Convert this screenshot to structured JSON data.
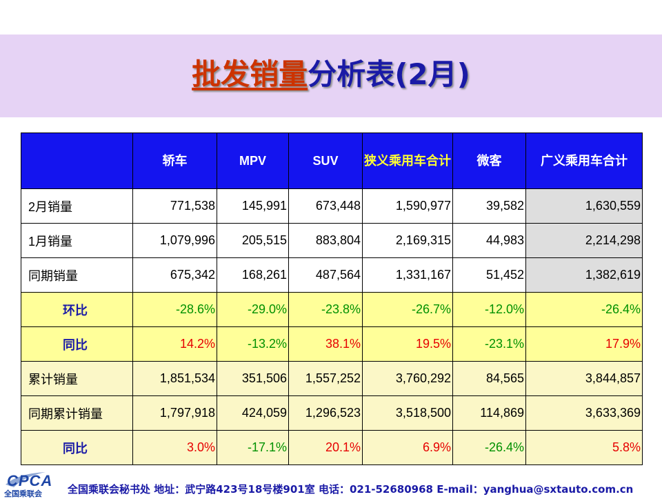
{
  "title": {
    "part1": "批发销量",
    "part2": "分析表(2月)"
  },
  "table": {
    "headers": [
      "",
      "轿车",
      "MPV",
      "SUV",
      "狭义乘用车合计",
      "微客",
      "广义乘用车合计"
    ],
    "rows": [
      {
        "label": "2月销量",
        "values": [
          "771,538",
          "145,991",
          "673,448",
          "1,590,977",
          "39,582",
          "1,630,559"
        ]
      },
      {
        "label": "1月销量",
        "values": [
          "1,079,996",
          "205,515",
          "883,804",
          "2,169,315",
          "44,983",
          "2,214,298"
        ]
      },
      {
        "label": "同期销量",
        "values": [
          "675,342",
          "168,261",
          "487,564",
          "1,331,167",
          "51,452",
          "1,382,619"
        ]
      },
      {
        "label": "环比",
        "values": [
          "-28.6%",
          "-29.0%",
          "-23.8%",
          "-26.7%",
          "-12.0%",
          "-26.4%"
        ]
      },
      {
        "label": "同比",
        "values": [
          "14.2%",
          "-13.2%",
          "38.1%",
          "19.5%",
          "-23.1%",
          "17.9%"
        ]
      },
      {
        "label": "累计销量",
        "values": [
          "1,851,534",
          "351,506",
          "1,557,252",
          "3,760,292",
          "84,565",
          "3,844,857"
        ]
      },
      {
        "label": "同期累计销量",
        "values": [
          "1,797,918",
          "424,059",
          "1,296,523",
          "3,518,500",
          "114,869",
          "3,633,369"
        ]
      },
      {
        "label": "同比",
        "values": [
          "3.0%",
          "-17.1%",
          "20.1%",
          "6.9%",
          "-26.4%",
          "5.8%"
        ]
      }
    ]
  },
  "footer": {
    "logo": "CPCA",
    "logo_sub": "全国乘联会",
    "contact": "全国乘联会秘书处  地址：武宁路423号18号楼901室    电话：021-52680968   E-mail：yanghua@sxtauto.com.cn"
  },
  "colors": {
    "header_bg": "#1414ef",
    "banner_bg": "#e6d3f5",
    "positive": "#e60000",
    "negative": "#009100",
    "highlight_row": "#ffff99"
  }
}
